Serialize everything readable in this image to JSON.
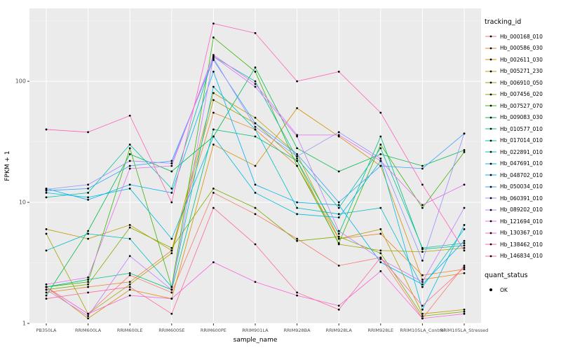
{
  "figure": {
    "y_axis_label": "FPKM + 1",
    "x_axis_label": "sample_name",
    "legend_title": "tracking_id",
    "quant_legend_title": "quant_status",
    "quant_legend_item": "OK"
  },
  "chart_data": {
    "type": "line",
    "title": "",
    "xlabel": "sample_name",
    "ylabel": "FPKM + 1",
    "y_scale": "log10",
    "ylim": [
      1,
      400
    ],
    "y_ticks": [
      1,
      10,
      100
    ],
    "legend_position": "right",
    "panel_background": "#EBEBEB",
    "grid_major_color": "#FFFFFF",
    "grid_minor_color": "#F5F5F5",
    "point_color": "#000000",
    "categories": [
      "PB350LA",
      "RRIM600LA",
      "RRIM600LE",
      "RRIM600SE",
      "RRIM600PE",
      "RRIM901LA",
      "RRIM928BA",
      "RRIM928LA",
      "RRIM928LE",
      "RRIM105LA_Control",
      "RRIM105LA_Stressed"
    ],
    "series": [
      {
        "name": "Hb_000168_010",
        "color": "#F8766D",
        "values": [
          2.0,
          1.2,
          2.5,
          1.8,
          12,
          8,
          5,
          3,
          3.5,
          1.1,
          3.0
        ]
      },
      {
        "name": "Hb_000586_030",
        "color": "#EA8331",
        "values": [
          1.8,
          2.0,
          2.2,
          4.0,
          55,
          40,
          20,
          5,
          5.5,
          2.5,
          2.8
        ]
      },
      {
        "name": "Hb_002611_030",
        "color": "#D89000",
        "values": [
          2.0,
          1.1,
          1.9,
          1.6,
          30,
          20,
          60,
          35,
          20,
          2.3,
          2.6
        ]
      },
      {
        "name": "Hb_005271_230",
        "color": "#C09B00",
        "values": [
          6.0,
          5.0,
          6.5,
          4.0,
          80,
          50,
          25,
          5,
          6,
          1.2,
          1.3
        ]
      },
      {
        "name": "Hb_006910_050",
        "color": "#A3A500",
        "values": [
          5.5,
          1.2,
          2.1,
          3.8,
          70,
          45,
          22,
          4.5,
          4.0,
          3.9,
          4.2
        ]
      },
      {
        "name": "Hb_007456_020",
        "color": "#7CAE00",
        "values": [
          1.9,
          2.1,
          6.2,
          4.2,
          13,
          9,
          4.8,
          5.2,
          3.8,
          1.15,
          1.25
        ]
      },
      {
        "name": "Hb_007527_070",
        "color": "#39B600",
        "values": [
          2.0,
          2.2,
          28,
          2.0,
          230,
          120,
          20,
          4.6,
          30,
          9,
          26
        ]
      },
      {
        "name": "Hb_009083_030",
        "color": "#00BB4E",
        "values": [
          1.7,
          5.8,
          25,
          18,
          35,
          130,
          28,
          18,
          25,
          20,
          27
        ]
      },
      {
        "name": "Hb_010577_010",
        "color": "#00BF7D",
        "values": [
          2.0,
          2.3,
          2.6,
          1.9,
          40,
          35,
          22,
          5.5,
          35,
          4.1,
          4.4
        ]
      },
      {
        "name": "Hb_017014_010",
        "color": "#00C1A3",
        "values": [
          11,
          12,
          30,
          13,
          160,
          100,
          23,
          9,
          28,
          4.2,
          4.6
        ]
      },
      {
        "name": "Hb_022891_010",
        "color": "#00BFC4",
        "values": [
          4.0,
          5.5,
          5.0,
          2.0,
          90,
          40,
          9,
          8,
          9,
          2.0,
          6.0
        ]
      },
      {
        "name": "Hb_047691_010",
        "color": "#00BAE0",
        "values": [
          12,
          11,
          13,
          5,
          35,
          12,
          8,
          7.5,
          22,
          1.3,
          6.5
        ]
      },
      {
        "name": "Hb_048702_010",
        "color": "#00B0F6",
        "values": [
          13,
          10.5,
          14,
          12,
          120,
          14,
          10,
          9.5,
          3.2,
          2.1,
          4.8
        ]
      },
      {
        "name": "Hb_050034_010",
        "color": "#35A2FF",
        "values": [
          12.5,
          13,
          20,
          22,
          150,
          45,
          25,
          10,
          20,
          19,
          37
        ]
      },
      {
        "name": "Hb_060391_010",
        "color": "#9590FF",
        "values": [
          12.8,
          14,
          22,
          21,
          155,
          42,
          24,
          38,
          23,
          3.3,
          37
        ]
      },
      {
        "name": "Hb_089202_010",
        "color": "#C77CFF",
        "values": [
          1.9,
          1.15,
          3.6,
          1.9,
          160,
          90,
          35,
          5.8,
          3.4,
          2.2,
          9
        ]
      },
      {
        "name": "Hb_121694_010",
        "color": "#E76BF3",
        "values": [
          2.1,
          2.4,
          19,
          20,
          165,
          95,
          36,
          36,
          22,
          9.5,
          14
        ]
      },
      {
        "name": "Hb_130367_010",
        "color": "#FA62DB",
        "values": [
          2.0,
          1.2,
          1.7,
          1.6,
          3.2,
          2.2,
          1.7,
          1.4,
          2.7,
          1.1,
          1.2
        ]
      },
      {
        "name": "Hb_138462_010",
        "color": "#FF62BC",
        "values": [
          40,
          38,
          52,
          10,
          300,
          250,
          100,
          120,
          55,
          14,
          4
        ]
      },
      {
        "name": "Hb_146834_010",
        "color": "#FF6A98",
        "values": [
          1.6,
          1.8,
          2.0,
          1.2,
          9,
          4.5,
          1.8,
          1.3,
          3.5,
          1.4,
          2.9
        ]
      }
    ]
  }
}
